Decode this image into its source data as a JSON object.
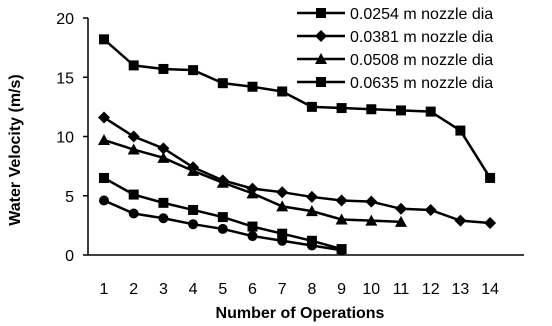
{
  "chart_data": {
    "type": "line",
    "title": "",
    "xlabel": "Number of Operations",
    "ylabel": "Water Velocity (m/s)",
    "xlim": [
      1,
      14
    ],
    "ylim": [
      0,
      20
    ],
    "x_ticks": [
      "1",
      "2",
      "3",
      "4",
      "5",
      "6",
      "7",
      "8",
      "9",
      "10",
      "11",
      "12",
      "13",
      "14"
    ],
    "y_ticks": [
      "0",
      "5",
      "10",
      "15",
      "20"
    ],
    "grid": false,
    "legend_position": "top-right",
    "series": [
      {
        "name": "0.0254 m nozzle dia",
        "marker": "square",
        "x": [
          1,
          2,
          3,
          4,
          5,
          6,
          7,
          8,
          9,
          10,
          11,
          12,
          13,
          14
        ],
        "values": [
          18.2,
          16.0,
          15.7,
          15.6,
          14.5,
          14.2,
          13.8,
          12.5,
          12.4,
          12.3,
          12.2,
          12.1,
          10.5,
          6.5
        ]
      },
      {
        "name": "0.0381 m nozzle dia",
        "marker": "diamond",
        "x": [
          1,
          2,
          3,
          4,
          5,
          6,
          7,
          8,
          9,
          10,
          11,
          12,
          13,
          14
        ],
        "values": [
          11.6,
          10.0,
          9.0,
          7.4,
          6.3,
          5.6,
          5.3,
          4.9,
          4.6,
          4.5,
          3.9,
          3.8,
          2.9,
          2.7
        ]
      },
      {
        "name": "0.0508 m nozzle dia",
        "marker": "triangle",
        "x": [
          1,
          2,
          3,
          4,
          5,
          6,
          7,
          8,
          9,
          10,
          11
        ],
        "values": [
          9.7,
          8.9,
          8.2,
          7.1,
          6.1,
          5.2,
          4.1,
          3.7,
          3.0,
          2.9,
          2.8
        ]
      },
      {
        "name": "0.0635 m nozzle dia",
        "marker": "square",
        "x": [
          1,
          2,
          3,
          4,
          5,
          6,
          7,
          8,
          9
        ],
        "values": [
          6.5,
          5.1,
          4.4,
          3.8,
          3.2,
          2.4,
          1.8,
          1.2,
          0.5
        ]
      },
      {
        "name": "",
        "marker": "circle",
        "x": [
          1,
          2,
          3,
          4,
          5,
          6,
          7,
          8,
          9
        ],
        "values": [
          4.6,
          3.5,
          3.1,
          2.6,
          2.2,
          1.6,
          1.2,
          0.8,
          0.4
        ]
      }
    ]
  }
}
